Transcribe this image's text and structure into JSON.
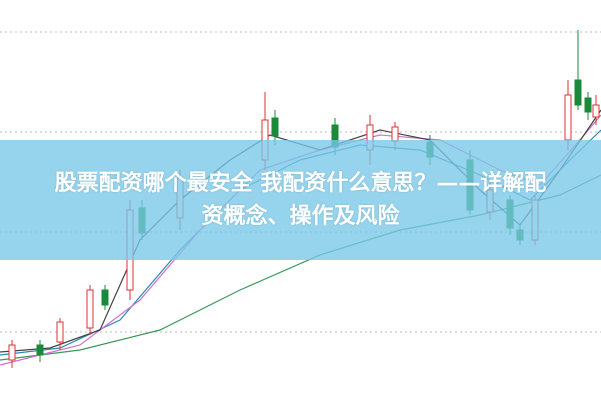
{
  "banner": {
    "title_lines": [
      "股票配资哪个最安全 我配资什么意思？——详解配",
      "资概念、操作及风险"
    ]
  }
}
